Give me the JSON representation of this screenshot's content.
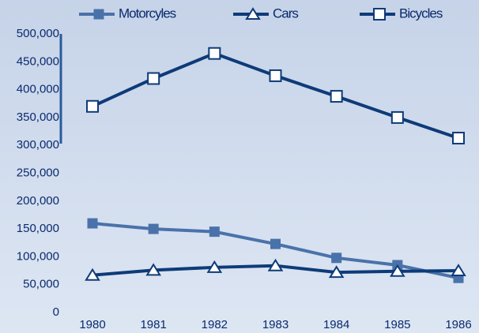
{
  "chart_data": {
    "type": "line",
    "categories": [
      "1980",
      "1981",
      "1982",
      "1983",
      "1984",
      "1985",
      "1986"
    ],
    "series": [
      {
        "name": "Motorcyles",
        "color": "#4a72aa",
        "marker": "square-filled",
        "values": [
          160000,
          150000,
          145000,
          123000,
          98000,
          85000,
          62000
        ]
      },
      {
        "name": "Cars",
        "color": "#0e3b78",
        "marker": "triangle",
        "values": [
          67000,
          76000,
          81000,
          84000,
          72000,
          74000,
          75000
        ]
      },
      {
        "name": "Bicycles",
        "color": "#0e3b78",
        "marker": "square",
        "values": [
          370000,
          420000,
          465000,
          425000,
          388000,
          350000,
          313000
        ]
      }
    ],
    "ylim": [
      0,
      500000
    ],
    "yticks": [
      0,
      {
        "value": 50000,
        "label": "50,000"
      },
      {
        "value": 100000,
        "label": "100,000"
      },
      {
        "value": 150000,
        "label": "150,000"
      },
      {
        "value": 200000,
        "label": "200,000"
      },
      {
        "value": 250000,
        "label": "250,000"
      },
      {
        "value": 300000,
        "label": "300,000"
      },
      {
        "value": 350000,
        "label": "350,000"
      },
      {
        "value": 400000,
        "label": "400,000"
      },
      {
        "value": 450000,
        "label": "450,000"
      },
      {
        "value": 500000,
        "label": "500,000"
      }
    ],
    "legend": "top"
  }
}
